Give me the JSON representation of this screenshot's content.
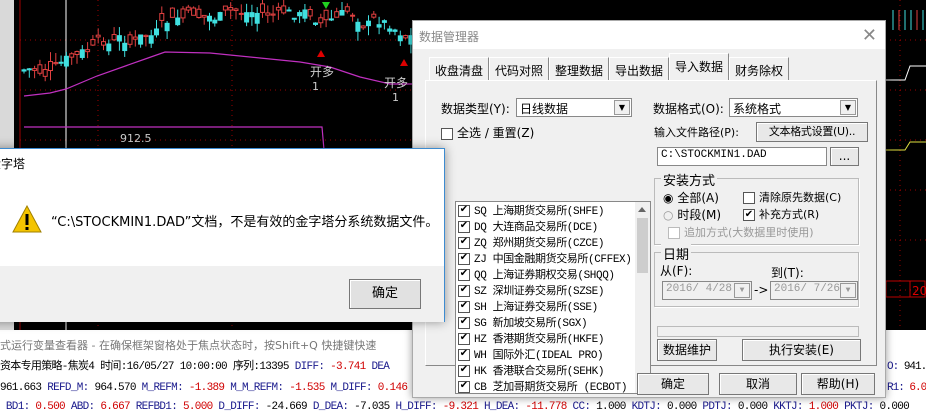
{
  "chart_labels": {
    "open_long_1": "开多",
    "count_1": "1",
    "open_long_2": "开多",
    "count_2": "1",
    "price_label": "912.5",
    "right_box": "20"
  },
  "status_bar": "式运行变量查看器 - 在确保框架窗格处于焦点状态时，按Shift+Q 快捷键快速",
  "indicator_rows": [
    [
      {
        "t": "资本专用策略-焦炭4 时间:16/05/27 10:00:00 序列:13395 ",
        "c": "blk"
      },
      {
        "t": "DIFF: ",
        "c": "lbl"
      },
      {
        "t": "-3.741 ",
        "c": "red"
      },
      {
        "t": "DEA",
        "c": "lbl"
      }
    ],
    [
      {
        "t": "961.663 ",
        "c": "blk"
      },
      {
        "t": "REFD_M: ",
        "c": "lbl"
      },
      {
        "t": "964.570 ",
        "c": "blk"
      },
      {
        "t": "M_REFM: ",
        "c": "lbl"
      },
      {
        "t": "-1.389 ",
        "c": "red"
      },
      {
        "t": "M_M_REFM: ",
        "c": "lbl"
      },
      {
        "t": "-1.535 ",
        "c": "red"
      },
      {
        "t": "M_DIFF: ",
        "c": "lbl"
      },
      {
        "t": "0.146",
        "c": "red"
      }
    ],
    [
      {
        "t": " BD1: ",
        "c": "lbl"
      },
      {
        "t": "0.500 ",
        "c": "red"
      },
      {
        "t": "ABD: ",
        "c": "lbl"
      },
      {
        "t": "6.667 ",
        "c": "red"
      },
      {
        "t": "REFBD1: ",
        "c": "lbl"
      },
      {
        "t": "5.000 ",
        "c": "red"
      },
      {
        "t": "D_DIFF: ",
        "c": "lbl"
      },
      {
        "t": "-24.669 ",
        "c": "blk"
      },
      {
        "t": "D_DEA: ",
        "c": "lbl"
      },
      {
        "t": "-7.035 ",
        "c": "blk"
      },
      {
        "t": "H_DIFF: ",
        "c": "lbl"
      },
      {
        "t": "-9.321 ",
        "c": "red"
      },
      {
        "t": "H_DEA: ",
        "c": "lbl"
      },
      {
        "t": "-11.778 ",
        "c": "red"
      },
      {
        "t": "CC: ",
        "c": "lbl"
      },
      {
        "t": "1.000 ",
        "c": "blk"
      },
      {
        "t": "KDTJ: ",
        "c": "lbl"
      },
      {
        "t": "0.000 ",
        "c": "blk"
      },
      {
        "t": "PDTJ: ",
        "c": "lbl"
      },
      {
        "t": "0.000 ",
        "c": "blk"
      },
      {
        "t": "KKTJ: ",
        "c": "lbl"
      },
      {
        "t": "1.000 ",
        "c": "red"
      },
      {
        "t": "PKTJ: ",
        "c": "lbl"
      },
      {
        "t": "0.000",
        "c": "blk"
      }
    ]
  ],
  "indicator_right": [
    {
      "l": "O: ",
      "v": "941.",
      "c": "blk"
    },
    {
      "l": "R1: ",
      "v": "6.0",
      "c": "red"
    }
  ],
  "data_manager": {
    "title": "数据管理器",
    "tabs": [
      "收盘清盘",
      "代码对照",
      "整理数据",
      "导出数据",
      "导入数据",
      "财务除权"
    ],
    "active_tab": "导入数据",
    "data_type_label": "数据类型(Y):",
    "data_type_value": "日线数据",
    "data_format_label": "数据格式(O):",
    "data_format_value": "系统格式",
    "select_all_label": "全选 / 重置(Z)",
    "exchanges": [
      {
        "code": "SQ",
        "name": "上海期货交易所(SHFE)",
        "checked": true
      },
      {
        "code": "DQ",
        "name": "大连商品交易所(DCE)",
        "checked": true
      },
      {
        "code": "ZQ",
        "name": "郑州期货交易所(CZCE)",
        "checked": true
      },
      {
        "code": "ZJ",
        "name": "中国金融期货交易所(CFFEX)",
        "checked": true
      },
      {
        "code": "QQ",
        "name": "上海证券期权交易(SHQQ)",
        "checked": true
      },
      {
        "code": "SZ",
        "name": "深圳证券交易所(SZSE)",
        "checked": true
      },
      {
        "code": "SH",
        "name": "上海证券交易所(SSE)",
        "checked": true
      },
      {
        "code": "SG",
        "name": "新加坡交易所(SGX)",
        "checked": true
      },
      {
        "code": "HZ",
        "name": "香港期货交易所(HKFE)",
        "checked": true
      },
      {
        "code": "WH",
        "name": "国际外汇(IDEAL PRO)",
        "checked": true
      },
      {
        "code": "HK",
        "name": "香港联合交易所(SEHK)",
        "checked": true
      },
      {
        "code": "CB",
        "name": "芝加哥期货交易所 (ECBOT)",
        "checked": true
      }
    ],
    "input_path_label": "输入文件路径(P):",
    "text_format_button": "文本格式设置(U)..",
    "input_path_value": "C:\\STOCKMIN1.DAD",
    "browse_button": "...",
    "install_group": "安装方式",
    "radio_all": "全部(A)",
    "radio_period": "时段(M)",
    "clear_label": "清除原先数据(C)",
    "supplement_label": "补充方式(R)",
    "append_label": "追加方式(大数据里时使用)",
    "date_group": "日期",
    "from_label": "从(F):",
    "to_label": "到(T):",
    "from_value": "2016/ 4/28",
    "to_value": "2016/ 7/26",
    "arrow": "->",
    "maintain_button": "数据维护",
    "execute_button": "执行安装(E)",
    "ok_button": "确定",
    "cancel_button": "取消",
    "help_button": "帮助(H)"
  },
  "error_dialog": {
    "title": "金字塔",
    "message": "“C:\\STOCKMIN1.DAD”文档，不是有效的金字塔分系统数据文件。",
    "ok_button": "确定"
  },
  "colors": {
    "ma_line": "#c030c0",
    "candle_up": "#e04040",
    "candle_down": "#40e0e0",
    "grid": "#a00000"
  }
}
